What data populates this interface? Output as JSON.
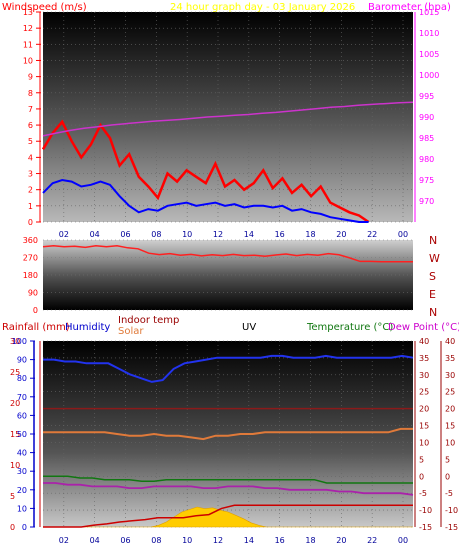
{
  "colors": {
    "wind": "#ff0000",
    "wind_avg": "#0000ff",
    "baro": "#cc33cc",
    "header_title": "#ffff00",
    "wind_axis": "#ff0000",
    "baro_axis": "#ff00ff",
    "dir_line": "#ff2020",
    "humidity": "#2233ee",
    "indoor": "#8b1a1a",
    "solar": "#e07a3a",
    "temperature": "#117711",
    "dewpoint": "#aa22aa",
    "rain": "#cc0000",
    "uv": "#ffcc00",
    "rain_axis": "#cc0000",
    "humidity_axis": "#0000cc",
    "temp_axis": "#990000",
    "dir_text": "#aa0000"
  },
  "header": {
    "windspeed_label": "Windspeed (m/s)",
    "title": "24 hour graph day - 03 January 2026",
    "barometer_label": "Barometer (hpa)"
  },
  "bottom_header": {
    "rainfall_label": "Rainfall (mm)",
    "humidity_label": "Humidity",
    "indoor_label": "Indoor temp",
    "solar_label": "Solar",
    "uv_label": "UV",
    "temperature_label": "Temperature (°C)",
    "dewpoint_label": "Dew Point (°C)"
  },
  "chart_data": [
    {
      "type": "line",
      "title": "24 hour graph day - 03 January 2026",
      "x_ticks": [
        "02",
        "04",
        "06",
        "08",
        "10",
        "12",
        "14",
        "16",
        "18",
        "20",
        "22",
        "00"
      ],
      "y_left": {
        "label": "Windspeed (m/s)",
        "range": [
          0,
          13
        ],
        "ticks": [
          0,
          1,
          2,
          3,
          4,
          5,
          6,
          7,
          8,
          9,
          10,
          11,
          12,
          13
        ]
      },
      "y_right": {
        "label": "Barometer (hpa)",
        "range": [
          965,
          1015
        ],
        "ticks": [
          970,
          975,
          980,
          985,
          990,
          995,
          1000,
          1005,
          1010,
          1015
        ]
      },
      "series": [
        {
          "name": "Windspeed",
          "color": "#ff0000",
          "values": [
            4.5,
            5.5,
            6.2,
            5.0,
            4.0,
            4.8,
            6.0,
            5.2,
            3.5,
            4.2,
            2.8,
            2.2,
            1.5,
            3.0,
            2.5,
            3.2,
            2.8,
            2.4,
            3.6,
            2.2,
            2.6,
            2.0,
            2.4,
            3.2,
            2.1,
            2.7,
            1.8,
            2.3,
            1.6,
            2.2,
            1.2,
            0.9,
            0.6,
            0.4,
            0.0
          ]
        },
        {
          "name": "Windspeed average",
          "color": "#0000ff",
          "values": [
            1.8,
            2.4,
            2.6,
            2.5,
            2.2,
            2.3,
            2.5,
            2.3,
            1.6,
            1.0,
            0.6,
            0.8,
            0.7,
            1.0,
            1.1,
            1.2,
            1.0,
            1.1,
            1.2,
            1.0,
            1.1,
            0.9,
            1.0,
            1.0,
            0.9,
            1.0,
            0.7,
            0.8,
            0.6,
            0.5,
            0.3,
            0.2,
            0.1,
            0.0,
            0.0
          ]
        },
        {
          "name": "Barometer",
          "color": "#cc33cc",
          "values": [
            985.5,
            986.2,
            986.8,
            987.3,
            987.7,
            988.1,
            988.4,
            988.7,
            989.0,
            989.2,
            989.4,
            989.7,
            990.0,
            990.2,
            990.4,
            990.6,
            990.9,
            991.1,
            991.4,
            991.7,
            992.0,
            992.3,
            992.5,
            992.8,
            993.0,
            993.2,
            993.4,
            993.5
          ]
        }
      ]
    },
    {
      "type": "line",
      "y_left": {
        "range": [
          0,
          360
        ],
        "ticks": [
          0,
          90,
          180,
          270,
          360
        ]
      },
      "y_right_labels": [
        "N",
        "W",
        "S",
        "E",
        "N"
      ],
      "series": [
        {
          "name": "Wind direction",
          "color": "#ff2020",
          "values": [
            325,
            330,
            325,
            328,
            322,
            330,
            325,
            330,
            320,
            315,
            292,
            285,
            290,
            282,
            286,
            278,
            284,
            280,
            286,
            280,
            282,
            276,
            283,
            288,
            280,
            286,
            282,
            290,
            284,
            268,
            250,
            250,
            248,
            248,
            248,
            248
          ]
        }
      ]
    },
    {
      "type": "line",
      "x_ticks": [
        "02",
        "04",
        "06",
        "08",
        "10",
        "12",
        "14",
        "16",
        "18",
        "20",
        "22",
        "00"
      ],
      "y_far_left": {
        "label": "Rainfall (mm)",
        "range": [
          0,
          30
        ],
        "ticks": [
          0,
          5,
          10,
          15,
          20,
          25,
          30
        ]
      },
      "y_left": {
        "label": "Humidity",
        "range": [
          0,
          100
        ],
        "ticks": [
          0,
          10,
          20,
          30,
          40,
          50,
          60,
          70,
          80,
          90,
          100
        ]
      },
      "y_right": {
        "label": "Temperature (°C)",
        "range": [
          -15,
          40
        ],
        "ticks": [
          -15,
          -10,
          -5,
          0,
          5,
          10,
          15,
          20,
          25,
          30,
          35,
          40
        ]
      },
      "y_far_right": {
        "label": "Dew Point (°C)",
        "range": [
          -15,
          40
        ],
        "ticks": [
          -15,
          -10,
          -5,
          0,
          5,
          10,
          15,
          20,
          25,
          30,
          35,
          40
        ]
      },
      "series": [
        {
          "name": "Humidity",
          "color": "#2233ee",
          "values": [
            90,
            90,
            89,
            89,
            88,
            88,
            88,
            85,
            82,
            80,
            78,
            79,
            85,
            88,
            89,
            90,
            91,
            91,
            91,
            91,
            91,
            92,
            92,
            91,
            91,
            91,
            92,
            91,
            91,
            91,
            91,
            91,
            91,
            92,
            91
          ]
        },
        {
          "name": "Indoor temp",
          "color": "#8b1a1a",
          "values": [
            20,
            20,
            20,
            20,
            20,
            20,
            20,
            20,
            20,
            20,
            20,
            20,
            20,
            20,
            20,
            20,
            20,
            20,
            20,
            20,
            20,
            20,
            20,
            20,
            20,
            20,
            20,
            20,
            20,
            20
          ]
        },
        {
          "name": "Solar",
          "color": "#e07a3a",
          "values": [
            13,
            13,
            13,
            13,
            13,
            13,
            12.5,
            12,
            12,
            12.5,
            12,
            12,
            11.5,
            11,
            12,
            12,
            12.5,
            12.5,
            13,
            13,
            13,
            13,
            13,
            13,
            13,
            13,
            13,
            13,
            13,
            14,
            14
          ]
        },
        {
          "name": "Temperature",
          "color": "#117711",
          "values": [
            0,
            0,
            0,
            -0.5,
            -0.5,
            -1,
            -1,
            -1,
            -1.5,
            -1.5,
            -1,
            -1,
            -1,
            -1,
            -1,
            -1,
            -1,
            -1,
            -1,
            -1,
            -1,
            -1,
            -1,
            -2,
            -2,
            -2,
            -2,
            -2,
            -2,
            -2,
            -2
          ]
        },
        {
          "name": "Dew Point",
          "color": "#aa22aa",
          "values": [
            -2,
            -2,
            -2.5,
            -2.5,
            -3,
            -3,
            -3,
            -3.5,
            -3.5,
            -3,
            -3,
            -3,
            -3,
            -3.5,
            -3.5,
            -3,
            -3,
            -3,
            -3.5,
            -3.5,
            -4,
            -4,
            -4,
            -4,
            -4.5,
            -4.5,
            -5,
            -5,
            -5,
            -5,
            -5.5
          ]
        },
        {
          "name": "Rainfall",
          "color": "#cc0000",
          "values": [
            0,
            0,
            0,
            0,
            0.3,
            0.5,
            0.8,
            1.0,
            1.2,
            1.5,
            1.5,
            1.5,
            1.8,
            2.0,
            3.0,
            3.5,
            3.5,
            3.5,
            3.5,
            3.5,
            3.5,
            3.5,
            3.5,
            3.5,
            3.5,
            3.5,
            3.5,
            3.5,
            3.5,
            3.5
          ]
        },
        {
          "name": "UV",
          "color": "#ffcc00",
          "values": [
            0,
            0,
            0,
            0,
            0,
            0,
            0,
            0,
            0,
            0,
            0,
            0,
            0,
            0,
            0,
            0.2,
            0.6,
            1.2,
            1.8,
            2.1,
            2.4,
            2.2,
            2.3,
            2.0,
            1.8,
            1.4,
            1.0,
            0.5,
            0.2,
            0,
            0,
            0,
            0,
            0,
            0,
            0,
            0,
            0,
            0,
            0,
            0,
            0,
            0,
            0,
            0,
            0,
            0,
            0,
            0
          ]
        }
      ]
    }
  ]
}
